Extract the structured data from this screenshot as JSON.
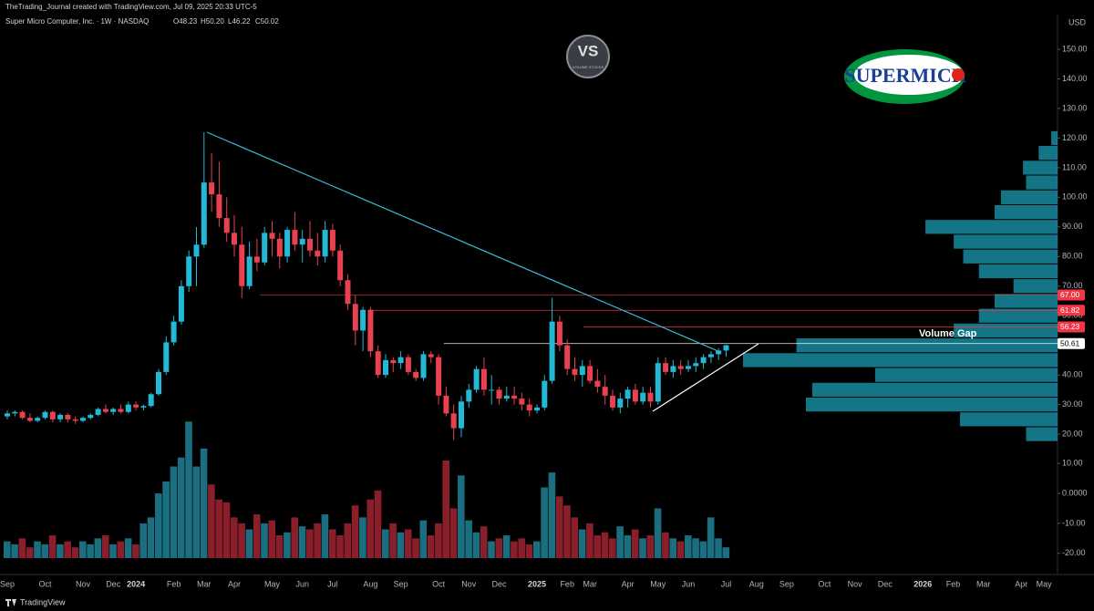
{
  "header": {
    "credit": "TheTrading_Journal created with TradingView.com, Jul 09, 2025 20:33 UTC-5",
    "symbol": "Super Micro Computer, Inc. · 1W · NASDAQ",
    "ohlc": [
      "O48.23",
      "H50.20",
      "L46.22",
      "C50.02"
    ],
    "currency": "USD",
    "footer": "TradingView"
  },
  "logos": {
    "vs": "VS",
    "vs_sub": "VOLUME STOCKS",
    "brand": "SUPERMICR"
  },
  "chart_data": {
    "type": "candlestick",
    "categories": [
      "Sep",
      null,
      null,
      null,
      null,
      "Oct",
      null,
      null,
      null,
      null,
      "Nov",
      null,
      null,
      null,
      "Dec",
      null,
      null,
      "2024",
      null,
      null,
      null,
      null,
      "Feb",
      null,
      null,
      null,
      "Mar",
      null,
      null,
      null,
      "Apr",
      null,
      null,
      null,
      null,
      "May",
      null,
      null,
      null,
      "Jun",
      null,
      null,
      null,
      "Jul",
      null,
      null,
      null,
      null,
      "Aug",
      null,
      null,
      null,
      "Sep",
      null,
      null,
      null,
      null,
      "Oct",
      null,
      null,
      null,
      "Nov",
      null,
      null,
      null,
      "Dec",
      null,
      null,
      null,
      null,
      "2025",
      null,
      null,
      null,
      "Feb",
      null,
      null,
      "Mar",
      null,
      null,
      null,
      null,
      "Apr",
      null,
      null,
      null,
      "May",
      null,
      null,
      null,
      "Jun",
      null,
      null,
      null,
      null,
      "Jul",
      null,
      null,
      null,
      "Aug",
      null,
      null,
      null,
      "Sep",
      null,
      null,
      null,
      null,
      "Oct",
      null,
      null,
      null,
      "Nov",
      null,
      null,
      null,
      "Dec",
      null,
      null,
      null,
      null,
      "2026",
      null,
      null,
      null,
      "Feb",
      null,
      null,
      null,
      "Mar",
      null,
      null,
      null,
      null,
      "Apr",
      null,
      null,
      "May",
      null,
      null
    ],
    "open": [
      26,
      27,
      27.5,
      25.5,
      24.5,
      25.5,
      27.5,
      25,
      26.5,
      25,
      24.5,
      25.5,
      26.5,
      28.5,
      27.5,
      28.5,
      27.5,
      30,
      29,
      29.5,
      33.5,
      41,
      51,
      58,
      70,
      80,
      84,
      105,
      101,
      93,
      88,
      84,
      70,
      80,
      78,
      88,
      86,
      80,
      89,
      84,
      86,
      82,
      80,
      89,
      82,
      72,
      64,
      55,
      62,
      48,
      40,
      45,
      44,
      46,
      41,
      39,
      47,
      46,
      33,
      27,
      22,
      31,
      35,
      42,
      35,
      35,
      32,
      33,
      32,
      30,
      28,
      29,
      38,
      58,
      50,
      42,
      40,
      43,
      38,
      36,
      33,
      29,
      32,
      35,
      31,
      34,
      31,
      44,
      41,
      43,
      42,
      43,
      44,
      46,
      47,
      48.23,
      null,
      null,
      null,
      null,
      null,
      null,
      null,
      null,
      null,
      null,
      null,
      null,
      null,
      null,
      null,
      null,
      null,
      null,
      null,
      null,
      null,
      null,
      null,
      null,
      null,
      null,
      null,
      null,
      null,
      null,
      null,
      null,
      null,
      null,
      null,
      null,
      null,
      null,
      null,
      null,
      null,
      null,
      null,
      null
    ],
    "high": [
      28,
      28,
      28,
      27,
      26,
      28,
      28,
      27,
      27,
      26,
      26,
      27,
      29,
      30,
      29,
      30,
      31,
      31,
      30,
      34,
      42,
      53,
      60,
      72,
      82,
      90,
      122,
      115,
      112,
      100,
      94,
      90,
      85,
      86,
      90,
      92,
      88,
      90,
      95,
      89,
      92,
      88,
      92,
      91,
      84,
      74,
      67,
      63,
      63,
      50,
      47,
      46,
      48,
      47,
      42,
      48,
      48,
      47,
      36,
      30,
      33,
      37,
      43,
      46,
      40,
      36,
      36,
      36,
      34,
      32,
      30,
      40,
      66,
      60,
      52,
      46,
      45,
      45,
      42,
      40,
      35,
      34,
      36,
      37,
      36,
      36,
      46,
      46,
      45,
      45,
      45,
      46,
      47,
      48,
      49,
      50.2,
      null,
      null,
      null,
      null,
      null,
      null,
      null,
      null,
      null,
      null,
      null,
      null,
      null,
      null,
      null,
      null,
      null,
      null,
      null,
      null,
      null,
      null,
      null,
      null,
      null,
      null,
      null,
      null,
      null,
      null,
      null,
      null,
      null,
      null,
      null,
      null,
      null,
      null,
      null,
      null,
      null,
      null,
      null,
      null
    ],
    "low": [
      25,
      26,
      25,
      24,
      24,
      25,
      24,
      24,
      24,
      23.5,
      24,
      25,
      26,
      27,
      26.5,
      27,
      27,
      28,
      28,
      29,
      33,
      40,
      50,
      57,
      68,
      70,
      83,
      95,
      90,
      85,
      80,
      66,
      69,
      75,
      77,
      80,
      76,
      78,
      82,
      78,
      80,
      77,
      78,
      80,
      70,
      62,
      50,
      48,
      46,
      39,
      39,
      41,
      42,
      40,
      38,
      38,
      44,
      30,
      26,
      18,
      19,
      29,
      34,
      33,
      30,
      30,
      31,
      30,
      28,
      26,
      27,
      28,
      37,
      48,
      40,
      38,
      36,
      37,
      34,
      30,
      28,
      27,
      29,
      30,
      30,
      29,
      30,
      40,
      39,
      40,
      41,
      41,
      42,
      44,
      45,
      46.22,
      null,
      null,
      null,
      null,
      null,
      null,
      null,
      null,
      null,
      null,
      null,
      null,
      null,
      null,
      null,
      null,
      null,
      null,
      null,
      null,
      null,
      null,
      null,
      null,
      null,
      null,
      null,
      null,
      null,
      null,
      null,
      null,
      null,
      null,
      null,
      null,
      null,
      null,
      null,
      null,
      null,
      null,
      null,
      null
    ],
    "close": [
      27,
      27.5,
      25.5,
      24.5,
      25.5,
      27.5,
      25,
      26.5,
      25,
      24.5,
      25.5,
      26.5,
      28.5,
      27.5,
      28.5,
      27.5,
      30,
      29,
      29.5,
      33.5,
      41,
      51,
      58,
      70,
      80,
      84,
      105,
      101,
      93,
      88,
      84,
      70,
      80,
      78,
      88,
      86,
      80,
      89,
      84,
      86,
      82,
      80,
      89,
      82,
      72,
      64,
      55,
      62,
      48,
      40,
      45,
      44,
      46,
      41,
      39,
      47,
      46,
      33,
      27,
      22,
      31,
      35,
      42,
      35,
      35,
      32,
      33,
      32,
      30,
      28,
      29,
      38,
      58,
      50,
      42,
      40,
      43,
      38,
      36,
      33,
      29,
      32,
      35,
      31,
      34,
      31,
      44,
      41,
      43,
      42,
      43,
      44,
      46,
      47,
      48.23,
      50.02,
      null,
      null,
      null,
      null,
      null,
      null,
      null,
      null,
      null,
      null,
      null,
      null,
      null,
      null,
      null,
      null,
      null,
      null,
      null,
      null,
      null,
      null,
      null,
      null,
      null,
      null,
      null,
      null,
      null,
      null,
      null,
      null,
      null,
      null,
      null,
      null,
      null,
      null,
      null,
      null,
      null,
      null,
      null,
      null
    ],
    "volume": [
      -16,
      -17,
      -15,
      -18,
      -16,
      -17,
      -14,
      -17,
      -16,
      -18,
      -16,
      -17,
      -15,
      -14,
      -17,
      -16,
      -15,
      -17,
      -10,
      -8,
      0,
      4,
      9,
      12,
      24,
      9,
      15,
      3,
      -2,
      -3,
      -8,
      -10,
      -12,
      -7,
      -10,
      -9,
      -14,
      -13,
      -8,
      -11,
      -12,
      -10,
      -7,
      -12,
      -14,
      -10,
      -4,
      -8,
      -2,
      1,
      -12,
      -10,
      -13,
      -12,
      -15,
      -9,
      -14,
      -10,
      11,
      -5,
      6,
      -9,
      -13,
      -11,
      -16,
      -15,
      -14,
      -16,
      -15,
      -17,
      -16,
      2,
      7,
      -1,
      -4,
      -8,
      -12,
      -10,
      -14,
      -13,
      -15,
      -11,
      -14,
      -12,
      -15,
      -14,
      -5,
      -13,
      -15,
      -16,
      -14,
      -15,
      -16,
      -8,
      -15,
      -18,
      null,
      null,
      null,
      null,
      null,
      null,
      null,
      null,
      null,
      null,
      null,
      null,
      null,
      null,
      null,
      null,
      null,
      null,
      null,
      null,
      null,
      null,
      null,
      null,
      null,
      null,
      null,
      null,
      null,
      null,
      null,
      null,
      null,
      null,
      null,
      null,
      null,
      null,
      null,
      null,
      null,
      null,
      null,
      null
    ],
    "up_color": "#22b8d6",
    "down_color": "#e8414f",
    "volume_up_color": "#1a6e80",
    "volume_down_color": "#8a1f2b",
    "ylim": [
      -26.8,
      161.1
    ],
    "yticks": [
      {
        "value": 20,
        "label": "20.00"
      },
      {
        "value": 30,
        "label": "30.00"
      },
      {
        "value": 40,
        "label": "40.00"
      },
      {
        "value": 50,
        "label": "50.00"
      },
      {
        "value": 60,
        "label": "60.00"
      },
      {
        "value": 70,
        "label": "70.00"
      },
      {
        "value": 80,
        "label": "80.00"
      },
      {
        "value": 90,
        "label": "90.00"
      },
      {
        "value": 100,
        "label": "100.00"
      },
      {
        "value": 110,
        "label": "110.00"
      },
      {
        "value": 120,
        "label": "120.00"
      },
      {
        "value": 130,
        "label": "130.00"
      },
      {
        "value": 140,
        "label": "140.00"
      },
      {
        "value": 150,
        "label": "150.00"
      }
    ],
    "y2lim": [
      -21.6,
      25
    ],
    "y2ticks": [
      {
        "value": 10,
        "label": "10.00"
      },
      {
        "value": 0,
        "label": "0.0000"
      },
      {
        "value": -10,
        "label": "-10.00"
      },
      {
        "value": -20,
        "label": "-20.00"
      }
    ],
    "levels": [
      {
        "value": 67,
        "label": "67.00",
        "color": "#f23645"
      },
      {
        "value": 61.82,
        "label": "61.82",
        "color": "#f23645"
      },
      {
        "value": 56.23,
        "label": "56.23",
        "color": "#f23645"
      },
      {
        "value": 50.61,
        "label": "50.61",
        "color": "#ffffff"
      }
    ],
    "annotation": "Volume Gap",
    "volume_profile": {
      "levels": [
        20,
        25,
        30,
        35,
        40,
        45,
        50,
        55,
        60,
        65,
        70,
        75,
        80,
        85,
        90,
        95,
        100,
        105,
        110,
        115,
        120
      ],
      "values": [
        10,
        31,
        80,
        78,
        58,
        100,
        83,
        33,
        25,
        20,
        14,
        25,
        30,
        33,
        42,
        20,
        18,
        10,
        11,
        6,
        2
      ],
      "color": "#17899d"
    }
  }
}
